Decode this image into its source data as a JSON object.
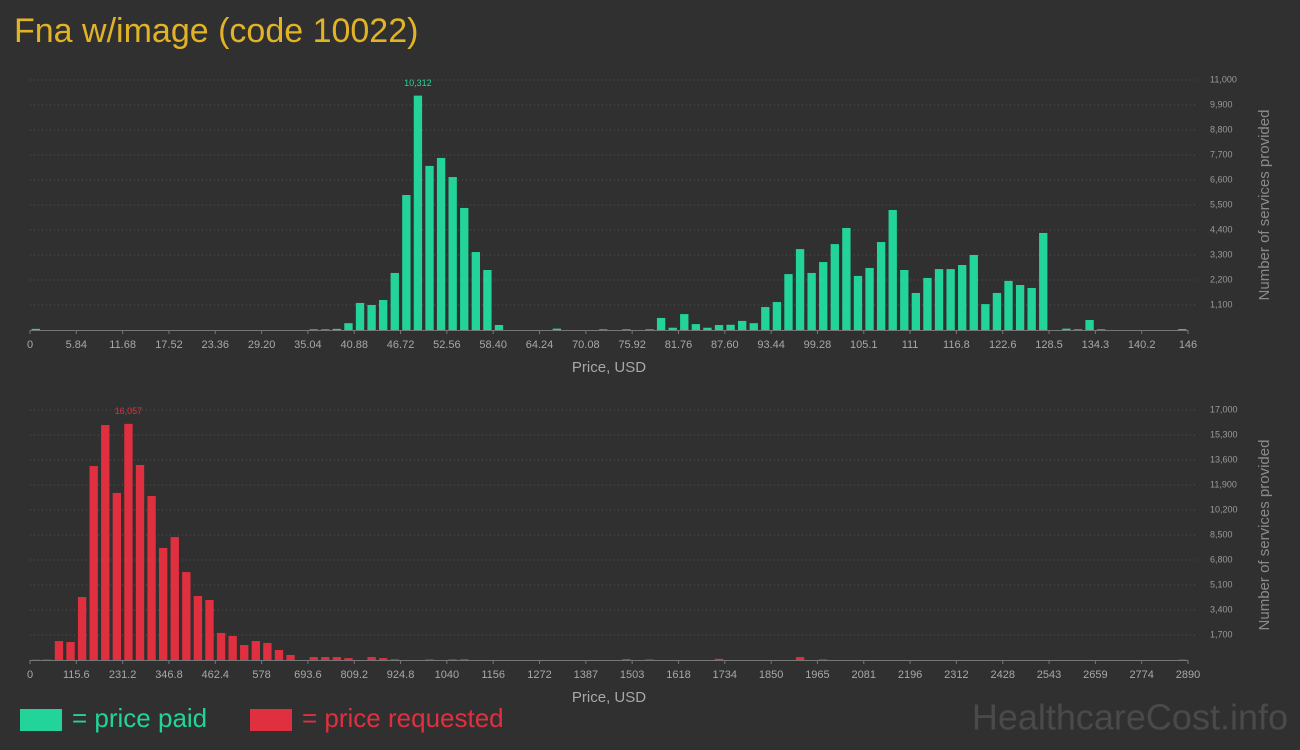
{
  "title": "Fna w/image (code 10022)",
  "watermark": "HealthcareCost.info",
  "chart_data": [
    {
      "type": "histogram",
      "xlabel": "Price, USD",
      "ylabel": "Number of services provided",
      "grid": true,
      "peak_label": "10,312",
      "bins": [
        0,
        1.46,
        2.92,
        4.38,
        5.84,
        7.3,
        8.76,
        10.22,
        11.68,
        13.14,
        14.6,
        16.06,
        17.52,
        18.98,
        20.44,
        21.9,
        23.36,
        24.82,
        26.28,
        27.74,
        29.2,
        30.66,
        32.12,
        33.58,
        35.04,
        36.5,
        37.96,
        39.42,
        40.88,
        42.34,
        43.8,
        45.26,
        46.72,
        48.18,
        49.64,
        51.1,
        52.56,
        54.02,
        55.48,
        56.94,
        58.4,
        59.86,
        61.32,
        62.78,
        64.24,
        65.7,
        67.16,
        68.62,
        70.08,
        71.54,
        73,
        74.46,
        75.92,
        77.38,
        78.84,
        80.3,
        81.76,
        83.22,
        84.68,
        86.14,
        87.6,
        89.06,
        90.52,
        91.98,
        93.44,
        94.9,
        96.36,
        97.82,
        99.28,
        100.74,
        102.2,
        103.66,
        105.12,
        106.58,
        108.04,
        109.5,
        110.96,
        112.42,
        113.88,
        115.34,
        116.8,
        118.26,
        119.72,
        121.18,
        122.64,
        124.1,
        125.56,
        127.02,
        128.48,
        129.94,
        131.4,
        132.86,
        134.32,
        135.78,
        137.24,
        138.7,
        140.16,
        141.62,
        143.08,
        144.54,
        146
      ],
      "series": [
        {
          "name": "= price paid",
          "color": "#22d49a",
          "values": [
            50,
            0,
            0,
            0,
            0,
            0,
            0,
            0,
            0,
            0,
            0,
            0,
            0,
            0,
            0,
            0,
            0,
            0,
            0,
            0,
            0,
            0,
            0,
            0,
            30,
            30,
            50,
            300,
            1190,
            1100,
            1320,
            2510,
            5940,
            10312,
            7220,
            7570,
            6730,
            5370,
            3430,
            2640,
            220,
            0,
            0,
            0,
            0,
            60,
            0,
            0,
            0,
            30,
            0,
            30,
            0,
            30,
            530,
            100,
            700,
            260,
            100,
            220,
            230,
            400,
            300,
            1010,
            1230,
            2460,
            3560,
            2510,
            2990,
            3780,
            4490,
            2380,
            2730,
            3870,
            5280,
            2640,
            1630,
            2290,
            2680,
            2680,
            2860,
            3300,
            1140,
            1630,
            2160,
            1980,
            1850,
            4270,
            0,
            60,
            30,
            440,
            30,
            0,
            0,
            0,
            0,
            0,
            0,
            40
          ]
        }
      ],
      "xlim": [
        0,
        146
      ],
      "xticks": [
        0,
        5.84,
        11.68,
        17.52,
        23.36,
        {
          "value": 29.2,
          "label": "29.20"
        },
        35.04,
        40.88,
        46.72,
        52.56,
        {
          "value": 58.4,
          "label": "58.40"
        },
        64.24,
        70.08,
        75.92,
        81.76,
        {
          "value": 87.6,
          "label": "87.60"
        },
        93.44,
        99.28,
        {
          "value": 105.12,
          "label": "105.1"
        },
        {
          "value": 110.96,
          "label": "111"
        },
        116.8,
        {
          "value": 122.64,
          "label": "122.6"
        },
        {
          "value": 128.48,
          "label": "128.5"
        },
        {
          "value": 134.32,
          "label": "134.3"
        },
        {
          "value": 140.16,
          "label": "140.2"
        },
        146
      ],
      "ylim": [
        0,
        11000
      ],
      "yticks": [
        {
          "value": 1100,
          "label": "1,100"
        },
        {
          "value": 2200,
          "label": "2,200"
        },
        {
          "value": 3300,
          "label": "3,300"
        },
        {
          "value": 4400,
          "label": "4,400"
        },
        {
          "value": 5500,
          "label": "5,500"
        },
        {
          "value": 6600,
          "label": "6,600"
        },
        {
          "value": 7700,
          "label": "7,700"
        },
        {
          "value": 8800,
          "label": "8,800"
        },
        {
          "value": 9900,
          "label": "9,900"
        },
        {
          "value": 11000,
          "label": "11,000"
        }
      ]
    },
    {
      "type": "histogram",
      "xlabel": "Price, USD",
      "ylabel": "Number of services provided",
      "grid": true,
      "peak_label": "16,057",
      "bins": [
        0,
        28.9,
        57.8,
        86.7,
        115.6,
        144.5,
        173.4,
        202.3,
        231.2,
        260.1,
        289,
        317.9,
        346.8,
        375.7,
        404.6,
        433.5,
        462.4,
        491.3,
        520.2,
        549.1,
        578,
        606.9,
        635.8,
        664.7,
        693.6,
        722.5,
        751.4,
        780.3,
        809.2,
        838.1,
        867,
        895.9,
        924.8,
        953.7,
        982.6,
        1011.5,
        1040.4,
        1069.3,
        1098.2,
        1127.1,
        1156,
        1184.9,
        1213.8,
        1242.7,
        1271.6,
        1300.5,
        1329.4,
        1358.3,
        1387.2,
        1416.1,
        1445,
        1473.9,
        1502.8,
        1531.7,
        1560.6,
        1589.5,
        1618.4,
        1647.3,
        1676.2,
        1705.1,
        1734,
        1762.9,
        1791.8,
        1820.7,
        1849.6,
        1878.5,
        1907.4,
        1936.3,
        1965.2,
        1994.1,
        2023,
        2051.9,
        2080.8,
        2109.7,
        2138.6,
        2167.5,
        2196.4,
        2225.3,
        2254.2,
        2283.1,
        2312,
        2340.9,
        2369.8,
        2398.7,
        2427.6,
        2456.5,
        2485.4,
        2514.3,
        2543.2,
        2572.1,
        2601,
        2629.9,
        2658.8,
        2687.7,
        2716.6,
        2745.5,
        2774.4,
        2803.3,
        2832.2,
        2861.1,
        2890
      ],
      "series": [
        {
          "name": "= price requested",
          "color": "#e0303f",
          "values": [
            20,
            30,
            1290,
            1220,
            4280,
            13190,
            15980,
            11360,
            16057,
            13260,
            11150,
            7620,
            8360,
            5980,
            4350,
            4080,
            1840,
            1630,
            1020,
            1290,
            1160,
            680,
            340,
            0,
            200,
            200,
            200,
            130,
            0,
            200,
            130,
            50,
            0,
            0,
            40,
            0,
            40,
            50,
            0,
            0,
            0,
            0,
            0,
            0,
            0,
            0,
            0,
            0,
            0,
            0,
            0,
            60,
            0,
            40,
            0,
            0,
            0,
            0,
            0,
            80,
            0,
            0,
            0,
            0,
            0,
            0,
            200,
            0,
            40,
            0,
            0,
            0,
            0,
            0,
            0,
            0,
            0,
            0,
            0,
            0,
            0,
            0,
            0,
            0,
            0,
            0,
            0,
            0,
            0,
            0,
            0,
            0,
            0,
            0,
            0,
            0,
            0,
            0,
            0,
            30
          ]
        }
      ],
      "xlim": [
        0,
        2890
      ],
      "xticks": [
        0,
        115.6,
        231.2,
        346.8,
        462.4,
        578,
        693.6,
        809.2,
        924.8,
        {
          "value": 1040.4,
          "label": "1040"
        },
        1156,
        {
          "value": 1271.6,
          "label": "1272"
        },
        {
          "value": 1387.2,
          "label": "1387"
        },
        {
          "value": 1502.8,
          "label": "1503"
        },
        {
          "value": 1618.4,
          "label": "1618"
        },
        1734,
        {
          "value": 1849.6,
          "label": "1850"
        },
        {
          "value": 1965.2,
          "label": "1965"
        },
        {
          "value": 2080.8,
          "label": "2081"
        },
        {
          "value": 2196.4,
          "label": "2196"
        },
        2312,
        {
          "value": 2427.6,
          "label": "2428"
        },
        {
          "value": 2543.2,
          "label": "2543"
        },
        {
          "value": 2658.8,
          "label": "2659"
        },
        {
          "value": 2774.4,
          "label": "2774"
        },
        2890
      ],
      "ylim": [
        0,
        17000
      ],
      "yticks": [
        {
          "value": 1700,
          "label": "1,700"
        },
        {
          "value": 3400,
          "label": "3,400"
        },
        {
          "value": 5100,
          "label": "5,100"
        },
        {
          "value": 6800,
          "label": "6,800"
        },
        {
          "value": 8500,
          "label": "8,500"
        },
        {
          "value": 10200,
          "label": "10,200"
        },
        {
          "value": 11900,
          "label": "11,900"
        },
        {
          "value": 13600,
          "label": "13,600"
        },
        {
          "value": 15300,
          "label": "15,300"
        },
        {
          "value": 17000,
          "label": "17,000"
        }
      ]
    }
  ]
}
